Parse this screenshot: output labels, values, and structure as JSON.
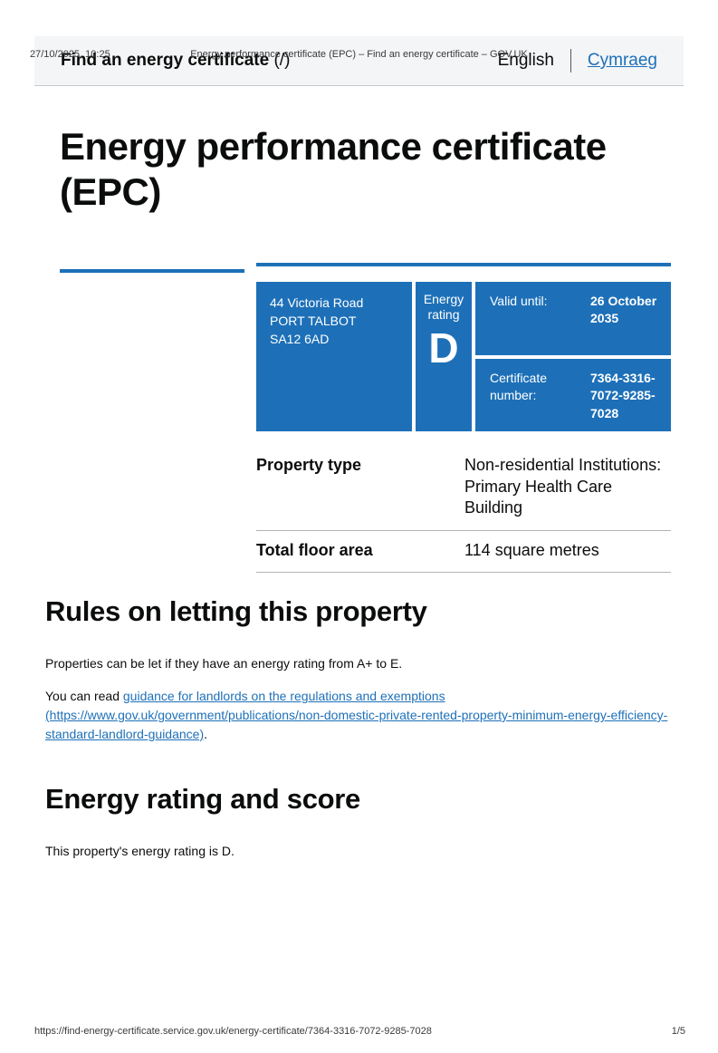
{
  "meta": {
    "print_date": "27/10/2025, 10:25",
    "print_title": "Energy performance certificate (EPC) – Find an energy certificate – GOV.UK",
    "print_url": "https://find-energy-certificate.service.gov.uk/energy-certificate/7364-3316-7072-9285-7028",
    "print_page": "1/5"
  },
  "header": {
    "service_name": "Find an energy certificate",
    "service_link_suffix": "(/)",
    "language_current": "English",
    "language_link": "Cymraeg"
  },
  "page": {
    "title": "Energy performance certificate (EPC)"
  },
  "certificate": {
    "address_line1": "44 Victoria Road",
    "address_line2": "PORT TALBOT",
    "address_line3": "SA12 6AD",
    "rating_label": "Energy rating",
    "rating": "D",
    "valid_until_label": "Valid until:",
    "valid_until_value": "26 October 2035",
    "cert_number_label": "Certificate number:",
    "cert_number_value": "7364-3316-7072-9285-7028"
  },
  "facts": {
    "rows": [
      {
        "label": "Property type",
        "value": "Non-residential Institutions: Primary Health Care Building"
      },
      {
        "label": "Total floor area",
        "value": "114 square metres"
      }
    ]
  },
  "rules_section": {
    "heading": "Rules on letting this property",
    "paragraph1": "Properties can be let if they have an energy rating from A+ to E.",
    "paragraph2_prefix": "You can read ",
    "link_text": "guidance for landlords on the regulations and exemptions (https://www.gov.uk/government/publications/non-domestic-private-rented-property-minimum-energy-efficiency-standard-landlord-guidance)",
    "paragraph2_suffix": "."
  },
  "score_section": {
    "heading": "Energy rating and score",
    "paragraph": "This property's energy rating is D."
  },
  "colors": {
    "govuk_blue": "#1d70b8",
    "text": "#0b0c0c",
    "header_background": "#f3f5f6",
    "table_border": "#b1b4b6"
  }
}
